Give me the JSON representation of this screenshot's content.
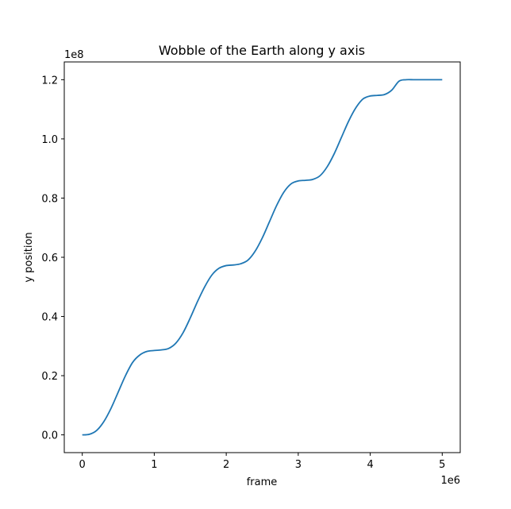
{
  "chart_data": {
    "type": "line",
    "title": "Wobble of the Earth along y axis",
    "xlabel": "frame",
    "ylabel": "y position",
    "x_offset_text": "1e6",
    "y_offset_text": "1e8",
    "xlim": [
      -0.25,
      5.25
    ],
    "ylim": [
      -0.06,
      1.26
    ],
    "x_ticks": [
      0,
      1,
      2,
      3,
      4,
      5
    ],
    "x_tick_labels": [
      "0",
      "1",
      "2",
      "3",
      "4",
      "5"
    ],
    "y_ticks": [
      0.0,
      0.2,
      0.4,
      0.6,
      0.8,
      1.0,
      1.2
    ],
    "y_tick_labels": [
      "0.0",
      "0.2",
      "0.4",
      "0.6",
      "0.8",
      "1.0",
      "1.2"
    ],
    "grid": false,
    "colors": {
      "line": "#1f77b4"
    },
    "series": [
      {
        "x": [
          0,
          0.1,
          0.2,
          0.3,
          0.4,
          0.5,
          0.6,
          0.7,
          0.8,
          0.9,
          1.0,
          1.1,
          1.2,
          1.3,
          1.4,
          1.5,
          1.6,
          1.7,
          1.8,
          1.9,
          2.0,
          2.1,
          2.2,
          2.3,
          2.4,
          2.5,
          2.6,
          2.7,
          2.8,
          2.9,
          3.0,
          3.1,
          3.2,
          3.3,
          3.4,
          3.5,
          3.6,
          3.7,
          3.8,
          3.9,
          4.0,
          4.1,
          4.2,
          4.3,
          4.4,
          4.5,
          4.6,
          4.7,
          4.8,
          4.9,
          5.0
        ],
        "y": [
          0.0,
          0.002,
          0.015,
          0.045,
          0.09,
          0.145,
          0.2,
          0.245,
          0.27,
          0.282,
          0.285,
          0.287,
          0.292,
          0.31,
          0.345,
          0.395,
          0.45,
          0.5,
          0.54,
          0.563,
          0.572,
          0.574,
          0.578,
          0.59,
          0.62,
          0.665,
          0.72,
          0.775,
          0.82,
          0.848,
          0.858,
          0.86,
          0.863,
          0.875,
          0.905,
          0.95,
          1.005,
          1.06,
          1.105,
          1.135,
          1.145,
          1.147,
          1.15,
          1.165,
          1.195,
          1.2,
          1.2,
          1.2,
          1.2,
          1.2,
          1.2
        ]
      }
    ]
  }
}
